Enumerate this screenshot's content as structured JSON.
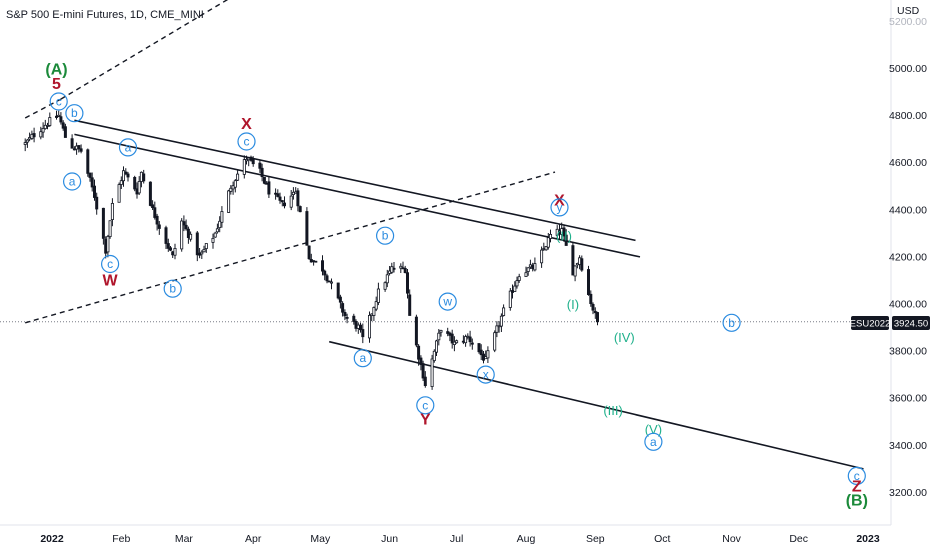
{
  "chart_data": {
    "type": "candlestick",
    "title": "S&P 500 E-mini Futures, 1D, CME_MINI",
    "currency": "USD",
    "symbol": "ESU2022",
    "last_price": "3924.50",
    "y_ticks": [
      "5200.00",
      "5000.00",
      "4800.00",
      "4600.00",
      "4400.00",
      "4200.00",
      "4000.00",
      "3800.00",
      "3600.00",
      "3400.00",
      "3200.00"
    ],
    "x_ticks": [
      "2022",
      "Feb",
      "Mar",
      "Apr",
      "May",
      "Jun",
      "Jul",
      "Aug",
      "Sep",
      "Oct",
      "Nov",
      "Dec",
      "2023"
    ],
    "ylim": [
      3100,
      5300
    ],
    "price_path": [
      [
        "2021-12-20",
        4680
      ],
      [
        "2021-12-24",
        4720
      ],
      [
        "2021-12-30",
        4770
      ],
      [
        "2022-01-04",
        4800
      ],
      [
        "2022-01-08",
        4680
      ],
      [
        "2022-01-14",
        4650
      ],
      [
        "2022-01-20",
        4460
      ],
      [
        "2022-01-25",
        4230
      ],
      [
        "2022-01-28",
        4420
      ],
      [
        "2022-02-02",
        4560
      ],
      [
        "2022-02-08",
        4480
      ],
      [
        "2022-02-10",
        4560
      ],
      [
        "2022-02-15",
        4400
      ],
      [
        "2022-02-18",
        4330
      ],
      [
        "2022-02-24",
        4200
      ],
      [
        "2022-02-28",
        4350
      ],
      [
        "2022-03-04",
        4280
      ],
      [
        "2022-03-08",
        4200
      ],
      [
        "2022-03-15",
        4300
      ],
      [
        "2022-03-22",
        4500
      ],
      [
        "2022-03-29",
        4620
      ],
      [
        "2022-04-04",
        4560
      ],
      [
        "2022-04-08",
        4480
      ],
      [
        "2022-04-14",
        4420
      ],
      [
        "2022-04-20",
        4480
      ],
      [
        "2022-04-26",
        4200
      ],
      [
        "2022-05-02",
        4150
      ],
      [
        "2022-05-06",
        4080
      ],
      [
        "2022-05-12",
        3950
      ],
      [
        "2022-05-18",
        3900
      ],
      [
        "2022-05-20",
        3850
      ],
      [
        "2022-05-27",
        4050
      ],
      [
        "2022-06-02",
        4150
      ],
      [
        "2022-06-08",
        4150
      ],
      [
        "2022-06-10",
        3950
      ],
      [
        "2022-06-14",
        3780
      ],
      [
        "2022-06-17",
        3660
      ],
      [
        "2022-06-24",
        3900
      ],
      [
        "2022-06-30",
        3830
      ],
      [
        "2022-07-06",
        3860
      ],
      [
        "2022-07-14",
        3760
      ],
      [
        "2022-07-22",
        3970
      ],
      [
        "2022-07-29",
        4130
      ],
      [
        "2022-08-05",
        4160
      ],
      [
        "2022-08-12",
        4290
      ],
      [
        "2022-08-17",
        4310
      ],
      [
        "2022-08-22",
        4140
      ],
      [
        "2022-08-25",
        4200
      ],
      [
        "2022-08-29",
        4040
      ],
      [
        "2022-09-01",
        3950
      ],
      [
        "2022-09-02",
        3924.5
      ]
    ],
    "wave_labels": [
      {
        "text": "(A)",
        "date": "2022-01-03",
        "price": 4995,
        "color": "#1b8a3a",
        "style": "bold"
      },
      {
        "text": "5",
        "date": "2022-01-03",
        "price": 4935,
        "color": "#b0162c",
        "style": "bold"
      },
      {
        "text": "c",
        "date": "2022-01-04",
        "price": 4860,
        "color": "#2a8be0",
        "style": "circle"
      },
      {
        "text": "b",
        "date": "2022-01-11",
        "price": 4810,
        "color": "#2a8be0",
        "style": "circle"
      },
      {
        "text": "a",
        "date": "2022-01-10",
        "price": 4520,
        "color": "#2a8be0",
        "style": "circle"
      },
      {
        "text": "a",
        "date": "2022-02-04",
        "price": 4665,
        "color": "#2a8be0",
        "style": "circle"
      },
      {
        "text": "c",
        "date": "2022-01-27",
        "price": 4170,
        "color": "#2a8be0",
        "style": "circle"
      },
      {
        "text": "W",
        "date": "2022-01-27",
        "price": 4100,
        "color": "#b0162c",
        "style": "bold"
      },
      {
        "text": "b",
        "date": "2022-02-24",
        "price": 4065,
        "color": "#2a8be0",
        "style": "circle"
      },
      {
        "text": "X",
        "date": "2022-03-29",
        "price": 4765,
        "color": "#b0162c",
        "style": "bold"
      },
      {
        "text": "c",
        "date": "2022-03-29",
        "price": 4690,
        "color": "#2a8be0",
        "style": "circle"
      },
      {
        "text": "b",
        "date": "2022-05-30",
        "price": 4290,
        "color": "#2a8be0",
        "style": "circle"
      },
      {
        "text": "a",
        "date": "2022-05-20",
        "price": 3770,
        "color": "#2a8be0",
        "style": "circle"
      },
      {
        "text": "w",
        "date": "2022-06-27",
        "price": 4010,
        "color": "#2a8be0",
        "style": "circle"
      },
      {
        "text": "x",
        "date": "2022-07-14",
        "price": 3700,
        "color": "#2a8be0",
        "style": "circle"
      },
      {
        "text": "c",
        "date": "2022-06-17",
        "price": 3570,
        "color": "#2a8be0",
        "style": "circle"
      },
      {
        "text": "Y",
        "date": "2022-06-17",
        "price": 3510,
        "color": "#b0162c",
        "style": "bold"
      },
      {
        "text": "X",
        "date": "2022-08-16",
        "price": 4440,
        "color": "#b0162c",
        "style": "bold"
      },
      {
        "text": "y",
        "date": "2022-08-16",
        "price": 4410,
        "color": "#2a8be0",
        "style": "circle"
      },
      {
        "text": "(II)",
        "date": "2022-08-18",
        "price": 4290,
        "color": "#1fb08b",
        "style": "plain"
      },
      {
        "text": "(I)",
        "date": "2022-08-22",
        "price": 4000,
        "color": "#1fb08b",
        "style": "plain"
      },
      {
        "text": "(IV)",
        "date": "2022-09-14",
        "price": 3860,
        "color": "#1fb08b",
        "style": "plain"
      },
      {
        "text": "b",
        "date": "2022-11-01",
        "price": 3920,
        "color": "#2a8be0",
        "style": "circle"
      },
      {
        "text": "(III)",
        "date": "2022-09-09",
        "price": 3550,
        "color": "#1fb08b",
        "style": "plain"
      },
      {
        "text": "(V)",
        "date": "2022-09-27",
        "price": 3470,
        "color": "#1fb08b",
        "style": "plain"
      },
      {
        "text": "a",
        "date": "2022-09-27",
        "price": 3415,
        "color": "#2a8be0",
        "style": "circle"
      },
      {
        "text": "c",
        "date": "2022-12-27",
        "price": 3270,
        "color": "#2a8be0",
        "style": "circle"
      },
      {
        "text": "Z",
        "date": "2022-12-27",
        "price": 3225,
        "color": "#b0162c",
        "style": "bold"
      },
      {
        "text": "(B)",
        "date": "2022-12-27",
        "price": 3165,
        "color": "#1b8a3a",
        "style": "bold"
      }
    ],
    "trend_lines": [
      {
        "from": [
          "2022-01-11",
          4780
        ],
        "to": [
          "2022-09-19",
          4270
        ],
        "style": "solid"
      },
      {
        "from": [
          "2022-01-11",
          4720
        ],
        "to": [
          "2022-09-21",
          4200
        ],
        "style": "solid"
      },
      {
        "from": [
          "2022-05-05",
          3840
        ],
        "to": [
          "2022-12-30",
          3300
        ],
        "style": "solid"
      },
      {
        "from": [
          "2021-12-20",
          4790
        ],
        "to": [
          "2022-01-05",
          4870
        ],
        "style": "dashed"
      },
      {
        "from": [
          "2022-01-05",
          4870
        ],
        "to": [
          "2022-04-19",
          5460
        ],
        "style": "dashed"
      },
      {
        "from": [
          "2021-12-20",
          3920
        ],
        "to": [
          "2022-08-14",
          4560
        ],
        "style": "dashed"
      }
    ]
  }
}
